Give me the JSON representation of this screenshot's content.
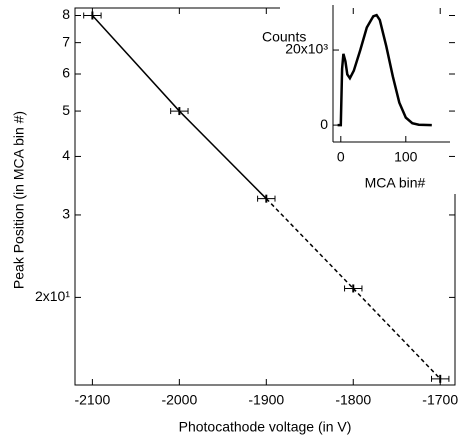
{
  "chart_data": [
    {
      "type": "errorbar",
      "xlabel": "Photocathode voltage (in V)",
      "ylabel": "Peak Position (in MCA bin #)",
      "x": [
        -2100,
        -2000,
        -1900,
        -1800,
        -1700
      ],
      "values": [
        80,
        50,
        32.5,
        20.9,
        13.4
      ],
      "xerr": [
        10,
        10,
        10,
        10,
        10
      ],
      "color": "#000000",
      "xlim": [
        -2120,
        -1683
      ],
      "xticks": [
        -2100,
        -2000,
        -1900,
        -1800,
        -1700
      ],
      "ylim": [
        13,
        83
      ],
      "yscale": "log",
      "yticks": [
        {
          "value": 80,
          "label": "8"
        },
        {
          "value": 70,
          "label": "7"
        },
        {
          "value": 60,
          "label": "6"
        },
        {
          "value": 50,
          "label": "5"
        },
        {
          "value": 40,
          "label": "4"
        },
        {
          "value": 30,
          "label": "3"
        },
        {
          "value": 20,
          "label": "2x10¹"
        }
      ]
    },
    {
      "type": "line",
      "xlabel": "MCA bin#",
      "ylabel": "Counts",
      "x": [
        -5,
        0,
        2,
        4,
        7,
        10,
        14,
        20,
        30,
        40,
        50,
        55,
        60,
        70,
        80,
        90,
        100,
        110,
        120,
        140
      ],
      "values": [
        0,
        0,
        15000,
        19000,
        17000,
        13500,
        12500,
        14500,
        20000,
        26000,
        29000,
        29300,
        28000,
        21000,
        13000,
        6000,
        2000,
        500,
        100,
        0
      ],
      "color": "#000000",
      "xlim": [
        -12,
        168
      ],
      "xticks": [
        0,
        100
      ],
      "ylim": [
        -4500,
        32000
      ],
      "yticks": [
        0,
        {
          "value": 20000,
          "label": "20x10³"
        }
      ]
    }
  ]
}
